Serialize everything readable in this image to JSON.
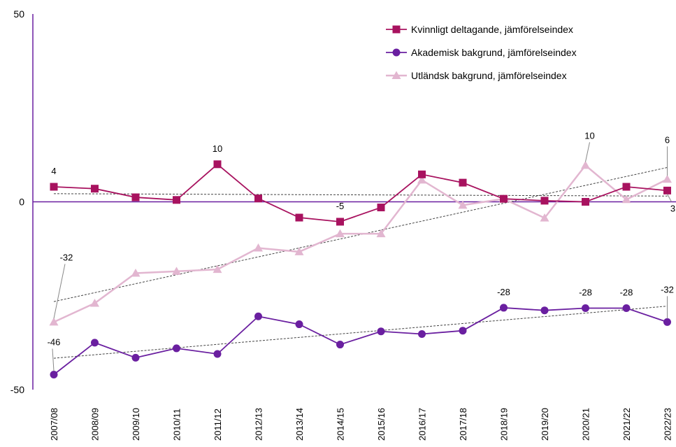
{
  "chart_data": {
    "type": "line",
    "ylim": [
      -50,
      50
    ],
    "y_ticks": [
      50,
      0,
      -50
    ],
    "y_tick_labels": [
      "50",
      "0",
      "-50"
    ],
    "categories": [
      "2007/08",
      "2008/09",
      "2009/10",
      "2010/11",
      "2011/12",
      "2012/13",
      "2013/14",
      "2014/15",
      "2015/16",
      "2016/17",
      "2017/18",
      "2018/19",
      "2019/20",
      "2020/21",
      "2021/22",
      "2022/23"
    ],
    "legend_position": "top-right",
    "series": [
      {
        "name": "Kvinnligt deltagande, jämförelseindex",
        "color": "#A8125F",
        "marker": "square",
        "values": [
          4,
          3.5,
          1.2,
          0.5,
          10,
          0.9,
          -4.2,
          -5.3,
          -1.5,
          7.3,
          5.1,
          0.8,
          0.3,
          0,
          4,
          3
        ],
        "trendline": true
      },
      {
        "name": "Akademisk bakgrund, jämförelseindex",
        "color": "#6A1FA0",
        "marker": "circle",
        "values": [
          -46,
          -37.5,
          -41.5,
          -39,
          -40.5,
          -30.5,
          -32.6,
          -38,
          -34.5,
          -35.2,
          -34.3,
          -28.2,
          -28.9,
          -28.3,
          -28.3,
          -32
        ],
        "trendline": true
      },
      {
        "name": "Utländsk bakgrund, jämförelseindex",
        "color": "#E2B6D0",
        "marker": "triangle",
        "values": [
          -32,
          -27,
          -19,
          -18.5,
          -18,
          -12.3,
          -13.3,
          -8.5,
          -8.5,
          5.8,
          -0.9,
          0.8,
          -4.3,
          9.7,
          0.6,
          6
        ],
        "trendline": true
      }
    ],
    "data_labels": [
      {
        "series": 0,
        "index": 0,
        "text": "4"
      },
      {
        "series": 0,
        "index": 4,
        "text": "10"
      },
      {
        "series": 0,
        "index": 7,
        "text": "-5"
      },
      {
        "series": 0,
        "index": 15,
        "text": "3"
      },
      {
        "series": 1,
        "index": 0,
        "text": "-46"
      },
      {
        "series": 1,
        "index": 11,
        "text": "-28"
      },
      {
        "series": 1,
        "index": 13,
        "text": "-28"
      },
      {
        "series": 1,
        "index": 14,
        "text": "-28"
      },
      {
        "series": 1,
        "index": 15,
        "text": "-32"
      },
      {
        "series": 2,
        "index": 0,
        "text": "-32"
      },
      {
        "series": 2,
        "index": 13,
        "text": "10"
      },
      {
        "series": 2,
        "index": 15,
        "text": "6"
      }
    ]
  }
}
